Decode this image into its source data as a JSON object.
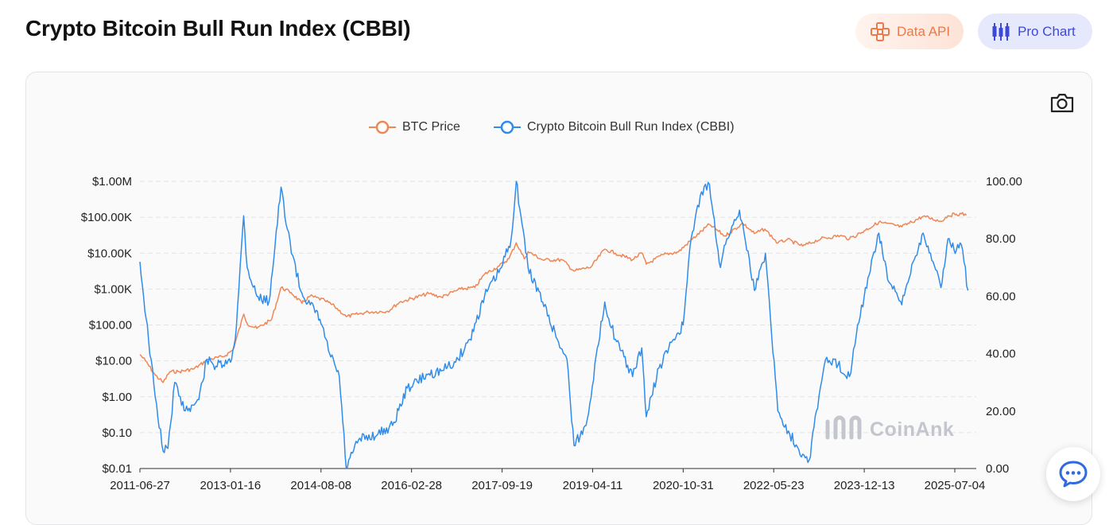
{
  "page": {
    "title": "Crypto Bitcoin Bull Run Index (CBBI)",
    "buttons": {
      "data_api": "Data API",
      "pro_chart": "Pro Chart"
    },
    "icons": {
      "data_api": "api-icon",
      "pro_chart": "candlestick-icon",
      "screenshot": "camera-icon",
      "chat": "chat-bubble-icon"
    },
    "watermark": "CoinAnk"
  },
  "colors": {
    "btc_price": "#ee8755",
    "cbbi": "#2f8cea",
    "data_api_text": "#ea7a4b",
    "pro_chart_text": "#3d49d6"
  },
  "chart_data": {
    "type": "line",
    "legend_position": "top-center",
    "grid": true,
    "x_axis": {
      "type": "date",
      "tick_labels": [
        "2011-06-27",
        "2013-01-16",
        "2014-08-08",
        "2016-02-28",
        "2017-09-19",
        "2019-04-11",
        "2020-10-31",
        "2022-05-23",
        "2023-12-13",
        "2025-07-04"
      ]
    },
    "y_left": {
      "scale": "log",
      "range": [
        0.01,
        1000000
      ],
      "tick_labels": [
        "$0.01",
        "$0.10",
        "$1.00",
        "$10.00",
        "$100.00",
        "$1.00K",
        "$10.00K",
        "$100.00K",
        "$1.00M"
      ]
    },
    "y_right": {
      "scale": "linear",
      "range": [
        0,
        100
      ],
      "tick_labels": [
        "0.00",
        "20.00",
        "40.00",
        "60.00",
        "80.00",
        "100.00"
      ]
    },
    "series": [
      {
        "name": "BTC Price",
        "axis": "left",
        "points": [
          [
            "2011-06-27",
            15
          ],
          [
            "2011-08-01",
            10
          ],
          [
            "2011-10-01",
            4
          ],
          [
            "2011-11-20",
            2.5
          ],
          [
            "2012-01-01",
            5
          ],
          [
            "2012-03-01",
            5
          ],
          [
            "2012-06-01",
            6
          ],
          [
            "2012-09-01",
            11
          ],
          [
            "2012-12-01",
            13
          ],
          [
            "2013-02-01",
            20
          ],
          [
            "2013-04-10",
            200
          ],
          [
            "2013-05-01",
            110
          ],
          [
            "2013-07-01",
            80
          ],
          [
            "2013-10-01",
            140
          ],
          [
            "2013-11-30",
            1100
          ],
          [
            "2014-02-01",
            800
          ],
          [
            "2014-04-10",
            400
          ],
          [
            "2014-06-01",
            640
          ],
          [
            "2014-09-01",
            480
          ],
          [
            "2014-11-01",
            330
          ],
          [
            "2015-01-14",
            170
          ],
          [
            "2015-06-01",
            230
          ],
          [
            "2015-10-01",
            240
          ],
          [
            "2015-12-15",
            430
          ],
          [
            "2016-06-15",
            750
          ],
          [
            "2016-09-01",
            600
          ],
          [
            "2017-01-01",
            1000
          ],
          [
            "2017-04-01",
            1100
          ],
          [
            "2017-06-01",
            2600
          ],
          [
            "2017-09-01",
            4400
          ],
          [
            "2017-11-01",
            7000
          ],
          [
            "2017-12-17",
            19500
          ],
          [
            "2018-02-06",
            6900
          ],
          [
            "2018-03-01",
            11000
          ],
          [
            "2018-06-01",
            6500
          ],
          [
            "2018-10-01",
            6500
          ],
          [
            "2018-12-15",
            3200
          ],
          [
            "2019-04-01",
            4100
          ],
          [
            "2019-06-26",
            12900
          ],
          [
            "2019-09-01",
            10000
          ],
          [
            "2019-12-18",
            6600
          ],
          [
            "2020-02-14",
            10200
          ],
          [
            "2020-03-13",
            4900
          ],
          [
            "2020-07-01",
            9200
          ],
          [
            "2020-10-01",
            10800
          ],
          [
            "2020-12-20",
            23000
          ],
          [
            "2021-04-14",
            63000
          ],
          [
            "2021-07-20",
            30000
          ],
          [
            "2021-11-10",
            68000
          ],
          [
            "2022-01-22",
            35000
          ],
          [
            "2022-03-28",
            47000
          ],
          [
            "2022-06-18",
            19000
          ],
          [
            "2022-08-15",
            24000
          ],
          [
            "2022-11-21",
            15800
          ],
          [
            "2023-03-15",
            25000
          ],
          [
            "2023-07-15",
            31000
          ],
          [
            "2023-09-11",
            25000
          ],
          [
            "2023-12-13",
            42000
          ],
          [
            "2024-03-14",
            73000
          ],
          [
            "2024-08-05",
            54000
          ],
          [
            "2024-12-17",
            106000
          ],
          [
            "2025-04-08",
            77000
          ],
          [
            "2025-05-22",
            111000
          ],
          [
            "2025-07-14",
            122000
          ],
          [
            "2025-08-14",
            124000
          ],
          [
            "2025-09-15",
            115000
          ]
        ]
      },
      {
        "name": "Crypto Bitcoin Bull Run Index (CBBI)",
        "axis": "right",
        "points": [
          [
            "2011-06-27",
            72
          ],
          [
            "2011-07-20",
            60
          ],
          [
            "2011-08-20",
            45
          ],
          [
            "2011-10-01",
            25
          ],
          [
            "2011-11-20",
            6
          ],
          [
            "2011-12-20",
            7
          ],
          [
            "2012-02-01",
            30
          ],
          [
            "2012-03-15",
            22
          ],
          [
            "2012-05-01",
            21
          ],
          [
            "2012-07-01",
            24
          ],
          [
            "2012-08-20",
            38
          ],
          [
            "2012-10-01",
            36
          ],
          [
            "2012-12-01",
            36
          ],
          [
            "2013-01-16",
            37
          ],
          [
            "2013-02-15",
            45
          ],
          [
            "2013-04-09",
            88
          ],
          [
            "2013-05-01",
            70
          ],
          [
            "2013-07-01",
            60
          ],
          [
            "2013-09-15",
            58
          ],
          [
            "2013-11-30",
            98
          ],
          [
            "2014-01-01",
            85
          ],
          [
            "2014-04-01",
            62
          ],
          [
            "2014-06-01",
            57
          ],
          [
            "2014-08-01",
            52
          ],
          [
            "2014-10-01",
            40
          ],
          [
            "2014-12-01",
            32
          ],
          [
            "2015-01-14",
            0
          ],
          [
            "2015-04-01",
            10
          ],
          [
            "2015-08-01",
            12
          ],
          [
            "2015-11-01",
            15
          ],
          [
            "2016-02-01",
            28
          ],
          [
            "2016-06-16",
            33
          ],
          [
            "2016-09-01",
            34
          ],
          [
            "2016-12-01",
            37
          ],
          [
            "2017-03-01",
            45
          ],
          [
            "2017-06-01",
            60
          ],
          [
            "2017-09-15",
            70
          ],
          [
            "2017-11-15",
            80
          ],
          [
            "2017-12-17",
            100
          ],
          [
            "2018-01-15",
            88
          ],
          [
            "2018-03-01",
            70
          ],
          [
            "2018-06-01",
            58
          ],
          [
            "2018-09-01",
            45
          ],
          [
            "2018-11-01",
            38
          ],
          [
            "2018-12-15",
            8
          ],
          [
            "2019-03-01",
            15
          ],
          [
            "2019-06-26",
            58
          ],
          [
            "2019-09-01",
            45
          ],
          [
            "2019-12-18",
            32
          ],
          [
            "2020-02-14",
            42
          ],
          [
            "2020-03-13",
            18
          ],
          [
            "2020-06-01",
            35
          ],
          [
            "2020-09-01",
            45
          ],
          [
            "2020-10-31",
            50
          ],
          [
            "2020-12-20",
            80
          ],
          [
            "2021-02-15",
            95
          ],
          [
            "2021-04-14",
            99
          ],
          [
            "2021-06-22",
            70
          ],
          [
            "2021-08-01",
            80
          ],
          [
            "2021-10-20",
            90
          ],
          [
            "2021-11-10",
            85
          ],
          [
            "2022-01-22",
            62
          ],
          [
            "2022-04-01",
            75
          ],
          [
            "2022-06-18",
            20
          ],
          [
            "2022-09-01",
            12
          ],
          [
            "2022-11-21",
            5
          ],
          [
            "2023-01-01",
            3
          ],
          [
            "2023-02-15",
            20
          ],
          [
            "2023-04-14",
            38
          ],
          [
            "2023-07-01",
            36
          ],
          [
            "2023-09-11",
            32
          ],
          [
            "2023-11-01",
            50
          ],
          [
            "2023-12-13",
            60
          ],
          [
            "2024-03-14",
            82
          ],
          [
            "2024-05-15",
            65
          ],
          [
            "2024-08-05",
            57
          ],
          [
            "2024-10-15",
            72
          ],
          [
            "2024-12-17",
            82
          ],
          [
            "2025-02-01",
            75
          ],
          [
            "2025-04-08",
            63
          ],
          [
            "2025-05-22",
            80
          ],
          [
            "2025-07-14",
            76
          ],
          [
            "2025-08-14",
            78
          ],
          [
            "2025-09-25",
            62
          ]
        ]
      }
    ]
  }
}
